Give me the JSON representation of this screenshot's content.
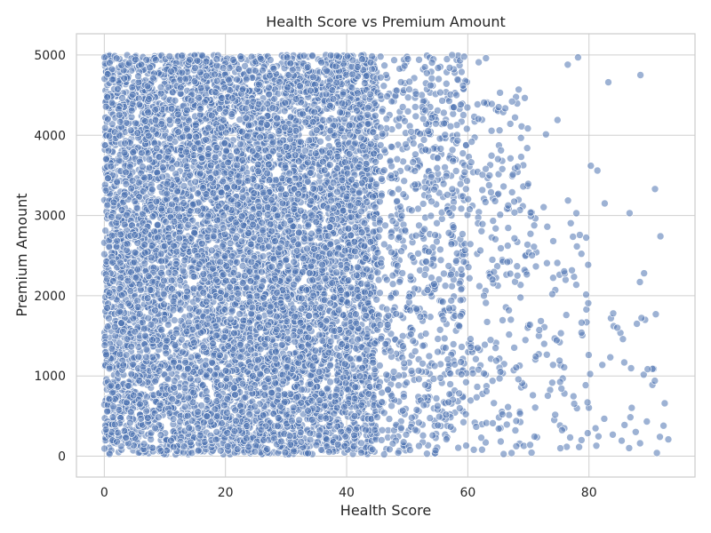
{
  "chart_data": {
    "type": "scatter",
    "title": "Health Score vs Premium Amount",
    "xlabel": "Health Score",
    "ylabel": "Premium Amount",
    "xlim": [
      -4.6,
      97.5
    ],
    "ylim": [
      -260,
      5265
    ],
    "xticks": [
      0,
      20,
      40,
      60,
      80
    ],
    "yticks": [
      0,
      1000,
      2000,
      3000,
      4000,
      5000
    ],
    "grid": true,
    "legend": "none",
    "point_color": "#4c72b0",
    "point_opacity": 0.55,
    "density_bands": [
      {
        "x_range": [
          0,
          45
        ],
        "y_range": [
          20,
          5000
        ],
        "weight": 42
      },
      {
        "x_range": [
          45,
          60
        ],
        "y_range": [
          20,
          5000
        ],
        "weight": 12
      },
      {
        "x_range": [
          60,
          70
        ],
        "y_range": [
          20,
          4600
        ],
        "weight": 5
      },
      {
        "x_range": [
          70,
          80
        ],
        "y_range": [
          20,
          3200
        ],
        "weight": 2.2
      },
      {
        "x_range": [
          80,
          93
        ],
        "y_range": [
          20,
          1800
        ],
        "weight": 0.6
      }
    ],
    "x": [
      91.2,
      93.1,
      92.3,
      88.5,
      90.9,
      91.8,
      83.2,
      86.7,
      89.1,
      88.4,
      85.6,
      87.9,
      84.0,
      82.6,
      78.2,
      76.5,
      80.3,
      81.4,
      74.8,
      72.9,
      69.8,
      67.3,
      65.1,
      63.0,
      61.8,
      59.4,
      55.2,
      50.1,
      45.6,
      38.4,
      30.2,
      22.5,
      12.8,
      4.1,
      0.6,
      0.3,
      1.2,
      2.5
    ],
    "y": [
      40,
      210,
      380,
      4750,
      3330,
      2740,
      4660,
      3030,
      2280,
      2170,
      1460,
      1650,
      1780,
      3150,
      4970,
      4880,
      3620,
      3560,
      4190,
      4010,
      3840,
      4420,
      4350,
      4960,
      4910,
      4980,
      4700,
      4950,
      4980,
      4990,
      4970,
      4980,
      4990,
      4900,
      4200,
      3700,
      2980,
      1800
    ]
  }
}
